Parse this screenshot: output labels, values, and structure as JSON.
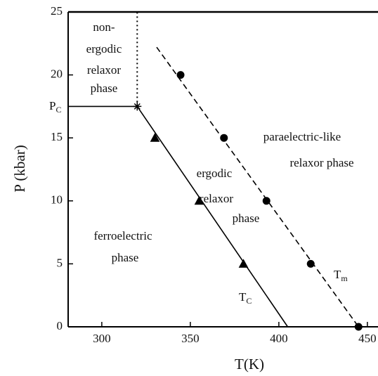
{
  "chart_data": {
    "type": "phase-diagram",
    "xlabel": "T(K)",
    "ylabel": "P (kbar)",
    "xlim": [
      281,
      456
    ],
    "ylim": [
      0,
      25
    ],
    "xticks": [
      300,
      350,
      400,
      450
    ],
    "yticks": [
      0,
      5,
      10,
      15,
      20,
      25
    ],
    "color": "#000000",
    "series": [
      {
        "style": "solid",
        "x": [
          281,
          320
        ],
        "values": [
          17.5,
          17.5
        ]
      },
      {
        "style": "dotted",
        "x": [
          320,
          320
        ],
        "values": [
          17.5,
          25
        ]
      },
      {
        "style": "solid",
        "x": [
          320,
          405
        ],
        "values": [
          17.5,
          0
        ]
      },
      {
        "style": "dashed",
        "x": [
          331,
          445
        ],
        "values": [
          22.2,
          0
        ]
      },
      {
        "style": "triangle",
        "x": [
          330,
          355,
          380
        ],
        "values": [
          15,
          10,
          5
        ]
      },
      {
        "style": "circle",
        "x": [
          344.5,
          369,
          393,
          418,
          445
        ],
        "values": [
          20,
          15,
          10,
          5,
          0
        ]
      },
      {
        "style": "star",
        "x": [
          320
        ],
        "values": [
          17.5
        ]
      }
    ],
    "annotations": [
      {
        "text": "non-"
      },
      {
        "text": "ergodic"
      },
      {
        "text": "relaxor"
      },
      {
        "text": "phase"
      },
      {
        "text": "paraelectric-like"
      },
      {
        "text": "relaxor phase"
      },
      {
        "text": "ergodic"
      },
      {
        "text": "relaxor"
      },
      {
        "text": "phase"
      },
      {
        "text": "ferroelectric"
      },
      {
        "text": "phase"
      },
      {
        "text": "P",
        "sub": "C"
      },
      {
        "text": "T",
        "sub": "C"
      },
      {
        "text": "T",
        "sub": "m"
      }
    ]
  }
}
